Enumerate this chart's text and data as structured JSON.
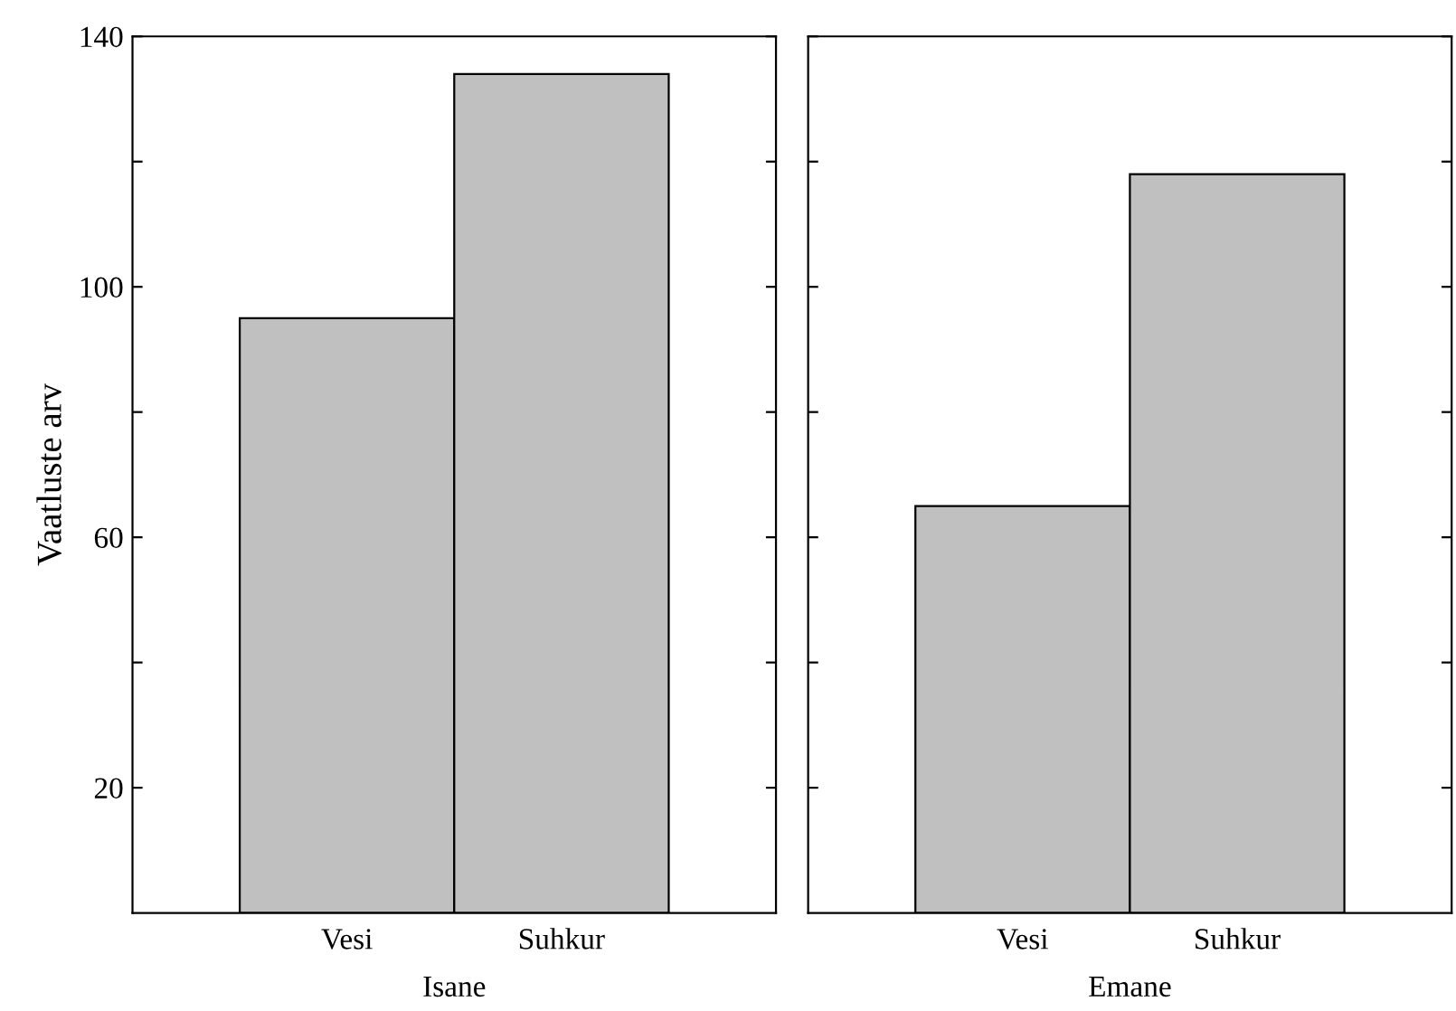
{
  "chart_data": [
    {
      "type": "bar",
      "categories": [
        "Vesi",
        "Suhkur"
      ],
      "values": [
        95,
        134
      ],
      "color": "#c0c0c0",
      "xlabel": "Isane",
      "ylabel": "Vaatluste arv",
      "ylim": [
        0,
        140
      ],
      "yticks": [
        {
          "value": 20,
          "label": "20"
        },
        {
          "value": 40,
          "label": null
        },
        {
          "value": 60,
          "label": "60"
        },
        {
          "value": 80,
          "label": null
        },
        {
          "value": 100,
          "label": "100"
        },
        {
          "value": 120,
          "label": null
        },
        {
          "value": 140,
          "label": "140"
        }
      ],
      "grid": false,
      "legend": false
    },
    {
      "type": "bar",
      "categories": [
        "Vesi",
        "Suhkur"
      ],
      "values": [
        65,
        118
      ],
      "color": "#c0c0c0",
      "xlabel": "Emane",
      "ylim": [
        0,
        140
      ],
      "yticks": [
        {
          "value": 20,
          "label": null
        },
        {
          "value": 40,
          "label": null
        },
        {
          "value": 60,
          "label": null
        },
        {
          "value": 80,
          "label": null
        },
        {
          "value": 100,
          "label": null
        },
        {
          "value": 120,
          "label": null
        },
        {
          "value": 140,
          "label": null
        }
      ],
      "tick_labels": "x",
      "grid": false,
      "legend": false
    }
  ]
}
